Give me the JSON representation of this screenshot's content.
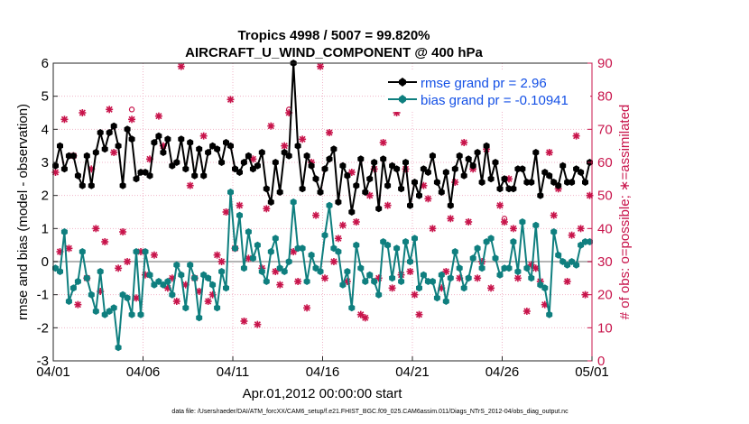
{
  "chart_data": {
    "type": "line",
    "title_line1": "Tropics 4998 / 5007 = 99.820%",
    "title_line2": "AIRCRAFT_U_WIND_COMPONENT @ 400 hPa",
    "xlabel": "Apr.01,2012 00:00:00 start",
    "ylabel_left": "rmse and bias (model - observation)",
    "ylabel_right": "# of obs: o=possible; ∗=assimilated",
    "ylim_left": [
      -3,
      6
    ],
    "ylim_right": [
      0,
      90
    ],
    "xlim": [
      0,
      30
    ],
    "yticks_left": [
      "6",
      "5",
      "4",
      "3",
      "2",
      "1",
      "0",
      "-1",
      "-2",
      "-3"
    ],
    "yticks_right": [
      "90",
      "80",
      "70",
      "60",
      "50",
      "40",
      "30",
      "20",
      "10",
      "0"
    ],
    "xtick_labels": [
      "04/01",
      "04/06",
      "04/11",
      "04/16",
      "04/21",
      "04/26",
      "05/01"
    ],
    "footnote": "data file: /Users/raeder/DAI/ATM_forcXX/CAM6_setup/f.e21.FHIST_BGC.f09_025.CAM6assim.011/Diags_NTrS_2012-04/obs_diag_output.nc",
    "legend": {
      "rmse_label": "rmse grand pr = 2.96",
      "bias_label": "bias grand pr = -0.10941"
    },
    "colors": {
      "rmse": "#000000",
      "bias": "#0f7f7f",
      "obs": "#c8144b",
      "grid": "#f0b4c8",
      "zero": "#b4b4b4",
      "legend_text": "#1450e6"
    },
    "series": [
      {
        "name": "rmse",
        "x": [
          0.125,
          0.375,
          0.625,
          0.875,
          1.125,
          1.375,
          1.625,
          1.875,
          2.125,
          2.375,
          2.625,
          2.875,
          3.125,
          3.375,
          3.625,
          3.875,
          4.125,
          4.375,
          4.625,
          4.875,
          5.125,
          5.375,
          5.625,
          5.875,
          6.125,
          6.375,
          6.625,
          6.875,
          7.125,
          7.375,
          7.625,
          7.875,
          8.125,
          8.375,
          8.625,
          8.875,
          9.125,
          9.375,
          9.625,
          9.875,
          10.125,
          10.375,
          10.625,
          10.875,
          11.125,
          11.375,
          11.625,
          11.875,
          12.125,
          12.375,
          12.625,
          12.875,
          13.125,
          13.375,
          13.625,
          13.875,
          14.125,
          14.375,
          14.625,
          14.875,
          15.125,
          15.375,
          15.625,
          15.875,
          16.125,
          16.375,
          16.625,
          16.875,
          17.125,
          17.375,
          17.625,
          17.875,
          18.125,
          18.375,
          18.625,
          18.875,
          19.125,
          19.375,
          19.625,
          19.875,
          20.125,
          20.375,
          20.625,
          20.875,
          21.125,
          21.375,
          21.625,
          21.875,
          22.125,
          22.375,
          22.625,
          22.875,
          23.125,
          23.375,
          23.625,
          23.875,
          24.125,
          24.375,
          24.625,
          24.875,
          25.125,
          25.375,
          25.625,
          25.875,
          26.125,
          26.375,
          26.625,
          26.875,
          27.125,
          27.375,
          27.625,
          27.875,
          28.125,
          28.375,
          28.625,
          28.875,
          29.125,
          29.375,
          29.625,
          29.875
        ],
        "values": [
          2.9,
          3.5,
          2.8,
          3.2,
          3.2,
          2.6,
          2.3,
          3.2,
          2.3,
          3.3,
          3.9,
          3.4,
          3.9,
          4.1,
          3.5,
          2.3,
          4.0,
          3.7,
          2.5,
          2.7,
          2.7,
          2.6,
          3.6,
          3.8,
          3.3,
          3.7,
          2.9,
          3.0,
          3.7,
          2.8,
          3.6,
          2.6,
          3.4,
          2.6,
          3.3,
          3.5,
          3.4,
          3.0,
          3.6,
          3.5,
          2.8,
          2.7,
          3.0,
          3.2,
          2.8,
          2.9,
          3.3,
          2.2,
          1.8,
          3.0,
          2.1,
          3.3,
          3.2,
          6.0,
          3.5,
          2.2,
          3.2,
          2.9,
          2.5,
          2.1,
          2.8,
          3.1,
          3.4,
          1.8,
          2.9,
          2.6,
          1.5,
          2.3,
          3.1,
          2.1,
          2.5,
          3.0,
          1.6,
          3.1,
          2.3,
          2.9,
          2.8,
          2.2,
          3.0,
          1.7,
          2.4,
          2.0,
          2.8,
          2.7,
          3.2,
          2.4,
          2.1,
          2.7,
          1.7,
          2.8,
          3.2,
          2.6,
          3.1,
          2.9,
          3.3,
          2.4,
          3.5,
          2.5,
          3.0,
          2.2,
          2.5,
          2.2,
          2.2,
          2.8,
          2.8,
          2.4,
          2.4,
          3.3,
          2.0,
          2.7,
          2.6,
          2.4,
          2.3,
          2.9,
          2.4,
          2.4,
          2.8,
          2.7,
          2.4,
          3.0
        ]
      },
      {
        "name": "bias",
        "x": [
          0.125,
          0.375,
          0.625,
          0.875,
          1.125,
          1.375,
          1.625,
          1.875,
          2.125,
          2.375,
          2.625,
          2.875,
          3.125,
          3.375,
          3.625,
          3.875,
          4.125,
          4.375,
          4.625,
          4.875,
          5.125,
          5.375,
          5.625,
          5.875,
          6.125,
          6.375,
          6.625,
          6.875,
          7.125,
          7.375,
          7.625,
          7.875,
          8.125,
          8.375,
          8.625,
          8.875,
          9.125,
          9.375,
          9.625,
          9.875,
          10.125,
          10.375,
          10.625,
          10.875,
          11.125,
          11.375,
          11.625,
          11.875,
          12.125,
          12.375,
          12.625,
          12.875,
          13.125,
          13.375,
          13.625,
          13.875,
          14.125,
          14.375,
          14.625,
          14.875,
          15.125,
          15.375,
          15.625,
          15.875,
          16.125,
          16.375,
          16.625,
          16.875,
          17.125,
          17.375,
          17.625,
          17.875,
          18.125,
          18.375,
          18.625,
          18.875,
          19.125,
          19.375,
          19.625,
          19.875,
          20.125,
          20.375,
          20.625,
          20.875,
          21.125,
          21.375,
          21.625,
          21.875,
          22.125,
          22.375,
          22.625,
          22.875,
          23.125,
          23.375,
          23.625,
          23.875,
          24.125,
          24.375,
          24.625,
          24.875,
          25.125,
          25.375,
          25.625,
          25.875,
          26.125,
          26.375,
          26.625,
          26.875,
          27.125,
          27.375,
          27.625,
          27.875,
          28.125,
          28.375,
          28.625,
          28.875,
          29.125,
          29.375,
          29.625,
          29.875
        ],
        "values": [
          -0.2,
          -0.3,
          0.9,
          -1.2,
          -0.8,
          -0.6,
          0.3,
          -0.5,
          -1.0,
          -1.5,
          -0.3,
          -1.6,
          -1.5,
          -1.4,
          -2.6,
          -1.0,
          -1.1,
          -1.6,
          0.3,
          -1.6,
          0.3,
          -0.4,
          -0.7,
          -0.6,
          -0.7,
          -0.6,
          -1.0,
          -0.1,
          -0.4,
          -1.4,
          -0.1,
          -0.5,
          -1.7,
          -0.4,
          -0.5,
          -0.7,
          -1.4,
          -0.3,
          -0.8,
          2.1,
          0.4,
          1.4,
          -0.2,
          0.9,
          0.1,
          0.5,
          -0.3,
          -0.6,
          0.3,
          0.7,
          -0.2,
          -0.3,
          0.0,
          1.8,
          0.4,
          0.4,
          -0.6,
          0.2,
          -0.2,
          -0.3,
          0.8,
          1.7,
          0.4,
          0.3,
          -0.7,
          -0.3,
          -1.4,
          0.5,
          -0.2,
          -0.6,
          -0.4,
          -0.6,
          -1.0,
          0.6,
          0.5,
          -0.5,
          0.4,
          -0.6,
          0.6,
          0.0,
          0.7,
          -0.8,
          -0.4,
          -0.6,
          -0.6,
          -1.1,
          -0.4,
          -1.2,
          -0.5,
          0.3,
          -0.2,
          -0.8,
          -0.5,
          0.1,
          0.4,
          -0.2,
          0.6,
          0.7,
          0.1,
          -0.4,
          -0.2,
          -0.2,
          0.6,
          -0.3,
          1.2,
          -0.2,
          -0.5,
          1.1,
          -0.7,
          -0.8,
          -1.6,
          0.9,
          0.2,
          0.0,
          -0.1,
          0.0,
          -0.1,
          0.5,
          0.6,
          0.6
        ]
      },
      {
        "name": "obs_possible",
        "x": [
          0.125,
          0.375,
          0.625,
          0.875,
          1.125,
          1.375,
          1.625,
          1.875,
          2.125,
          2.375,
          2.625,
          2.875,
          3.125,
          3.375,
          3.625,
          3.875,
          4.125,
          4.375,
          4.625,
          4.875,
          5.125,
          5.375,
          5.625,
          5.875,
          6.125,
          6.375,
          6.625,
          6.875,
          7.125,
          7.375,
          7.625,
          7.875,
          8.125,
          8.375,
          8.625,
          8.875,
          9.125,
          9.375,
          9.625,
          9.875,
          10.125,
          10.375,
          10.625,
          10.875,
          11.125,
          11.375,
          11.625,
          11.875,
          12.125,
          12.375,
          12.625,
          12.875,
          13.125,
          13.375,
          13.625,
          13.875,
          14.125,
          14.375,
          14.625,
          14.875,
          15.125,
          15.375,
          15.625,
          15.875,
          16.125,
          16.375,
          16.625,
          16.875,
          17.125,
          17.375,
          17.625,
          17.875,
          18.125,
          18.375,
          18.625,
          18.875,
          19.125,
          19.375,
          19.625,
          19.875,
          20.125,
          20.375,
          20.625,
          20.875,
          21.125,
          21.375,
          21.625,
          21.875,
          22.125,
          22.375,
          22.625,
          22.875,
          23.125,
          23.375,
          23.625,
          23.875,
          24.125,
          24.375,
          24.625,
          24.875,
          25.125,
          25.375,
          25.625,
          25.875,
          26.125,
          26.375,
          26.625,
          26.875,
          27.125,
          27.375,
          27.625,
          27.875,
          28.125,
          28.375,
          28.625,
          28.875,
          29.125,
          29.375,
          29.625,
          29.875
        ],
        "values": [
          57,
          33,
          73,
          34,
          62,
          17,
          75,
          25,
          58,
          40,
          21,
          36,
          76,
          63,
          28,
          39,
          30,
          76,
          19,
          33,
          26,
          61,
          32,
          74,
          65,
          22,
          25,
          18,
          89,
          23,
          53,
          25,
          21,
          68,
          18,
          20,
          32,
          30,
          45,
          79,
          34,
          47,
          12,
          31,
          61,
          11,
          28,
          46,
          71,
          27,
          23,
          65,
          76,
          33,
          24,
          67,
          16,
          60,
          44,
          89,
          25,
          69,
          30,
          37,
          41,
          24,
          57,
          42,
          14,
          13,
          50,
          58,
          25,
          66,
          47,
          22,
          75,
          26,
          58,
          27,
          20,
          14,
          53,
          49,
          40,
          80,
          22,
          27,
          43,
          54,
          25,
          66,
          42,
          58,
          25,
          30,
          64,
          22,
          81,
          47,
          43,
          55,
          40,
          25,
          83,
          15,
          29,
          28,
          24,
          17,
          63,
          44,
          52,
          85,
          24,
          38,
          68,
          40,
          20,
          50
        ]
      },
      {
        "name": "obs_assimilated",
        "x": [
          0.125,
          0.375,
          0.625,
          0.875,
          1.125,
          1.375,
          1.625,
          1.875,
          2.125,
          2.375,
          2.625,
          2.875,
          3.125,
          3.375,
          3.625,
          3.875,
          4.125,
          4.375,
          4.625,
          4.875,
          5.125,
          5.375,
          5.625,
          5.875,
          6.125,
          6.375,
          6.625,
          6.875,
          7.125,
          7.375,
          7.625,
          7.875,
          8.125,
          8.375,
          8.625,
          8.875,
          9.125,
          9.375,
          9.625,
          9.875,
          10.125,
          10.375,
          10.625,
          10.875,
          11.125,
          11.375,
          11.625,
          11.875,
          12.125,
          12.375,
          12.625,
          12.875,
          13.125,
          13.375,
          13.625,
          13.875,
          14.125,
          14.375,
          14.625,
          14.875,
          15.125,
          15.375,
          15.625,
          15.875,
          16.125,
          16.375,
          16.625,
          16.875,
          17.125,
          17.375,
          17.625,
          17.875,
          18.125,
          18.375,
          18.625,
          18.875,
          19.125,
          19.375,
          19.625,
          19.875,
          20.125,
          20.375,
          20.625,
          20.875,
          21.125,
          21.375,
          21.625,
          21.875,
          22.125,
          22.375,
          22.625,
          22.875,
          23.125,
          23.375,
          23.625,
          23.875,
          24.125,
          24.375,
          24.625,
          24.875,
          25.125,
          25.375,
          25.625,
          25.875,
          26.125,
          26.375,
          26.625,
          26.875,
          27.125,
          27.375,
          27.625,
          27.875,
          28.125,
          28.375,
          28.625,
          28.875,
          29.125,
          29.375,
          29.625,
          29.875
        ],
        "values": [
          57,
          33,
          73,
          34,
          62,
          17,
          75,
          25,
          58,
          40,
          21,
          36,
          76,
          63,
          28,
          39,
          30,
          73,
          19,
          33,
          26,
          61,
          32,
          74,
          65,
          22,
          25,
          18,
          89,
          23,
          53,
          25,
          21,
          68,
          18,
          20,
          32,
          30,
          45,
          79,
          34,
          47,
          12,
          31,
          61,
          11,
          28,
          46,
          71,
          27,
          23,
          65,
          75,
          33,
          24,
          67,
          16,
          60,
          44,
          89,
          25,
          69,
          30,
          37,
          41,
          24,
          57,
          42,
          14,
          13,
          50,
          58,
          25,
          66,
          47,
          22,
          75,
          26,
          58,
          27,
          20,
          14,
          53,
          49,
          40,
          80,
          22,
          27,
          43,
          54,
          25,
          66,
          42,
          58,
          25,
          30,
          64,
          22,
          81,
          47,
          42,
          55,
          40,
          25,
          83,
          15,
          29,
          28,
          24,
          17,
          63,
          44,
          52,
          85,
          24,
          38,
          68,
          40,
          20,
          50
        ]
      }
    ]
  }
}
